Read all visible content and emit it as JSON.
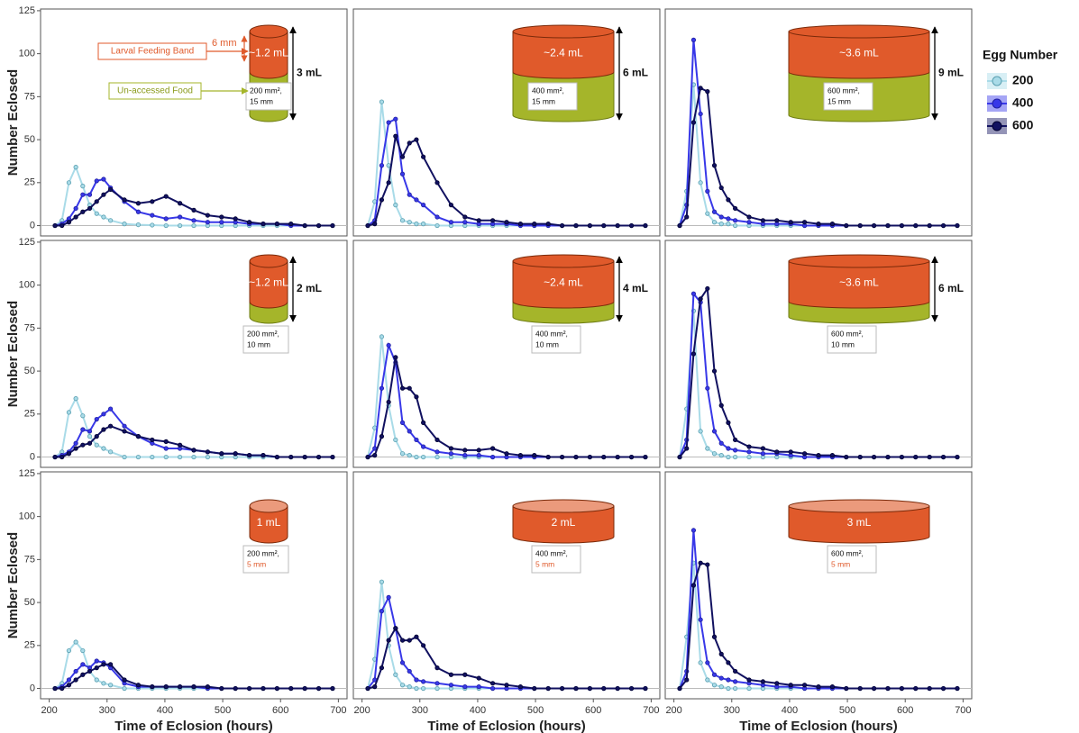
{
  "legend": {
    "title": "Egg Number",
    "entries": [
      {
        "name": "200",
        "color": "#a9dbe8",
        "edge": "#5a9fb0"
      },
      {
        "name": "400",
        "color": "#3838e8",
        "edge": "#2020a0"
      },
      {
        "name": "600",
        "color": "#111160",
        "edge": "#000030"
      }
    ]
  },
  "chart_data": [
    {
      "type": "line",
      "y_label": "Number Eclosed",
      "xlim": [
        185,
        715
      ],
      "ylim": [
        -6,
        126
      ],
      "yticks": [
        0,
        25,
        50,
        75,
        100,
        125
      ],
      "x": [
        210,
        222,
        234,
        246,
        258,
        270,
        282,
        294,
        306,
        330,
        354,
        378,
        402,
        426,
        450,
        474,
        498,
        522,
        546,
        570,
        594,
        618,
        642,
        666,
        690
      ],
      "series": [
        {
          "values": [
            0,
            3,
            25,
            34,
            23,
            12,
            7,
            5,
            3,
            1,
            0.5,
            0.3,
            0,
            0,
            0,
            0,
            0,
            0,
            0,
            0,
            0,
            0,
            0,
            0,
            0
          ]
        },
        {
          "values": [
            0,
            1,
            4,
            10,
            18,
            18,
            26,
            27,
            22,
            14,
            8,
            6,
            4,
            5,
            3,
            2,
            2,
            2,
            1,
            1,
            1,
            0,
            0,
            0,
            0
          ]
        },
        {
          "values": [
            0,
            0,
            2,
            5,
            8,
            10,
            14,
            18,
            21,
            15,
            13,
            14,
            17,
            13,
            9,
            6,
            5,
            4,
            2,
            1,
            1,
            1,
            0,
            0,
            0
          ]
        }
      ],
      "inset": {
        "band_label": "~1.2 mL",
        "total_label": "3 mL",
        "area_label": "200 mm²,",
        "depth_label": "15 mm",
        "band_color": "#e05a2b",
        "food_color": "#a5b52a"
      },
      "annotations": {
        "feeding_band": "Larval Feeding Band",
        "band_depth": "6 mm",
        "food": "Un-accessed Food"
      }
    },
    {
      "type": "line",
      "xlim": [
        185,
        715
      ],
      "ylim": [
        -6,
        126
      ],
      "x": [
        210,
        222,
        234,
        246,
        258,
        270,
        282,
        294,
        306,
        330,
        354,
        378,
        402,
        426,
        450,
        474,
        498,
        522,
        546,
        570,
        594,
        618,
        642,
        666,
        690
      ],
      "series": [
        {
          "values": [
            0,
            14,
            72,
            35,
            12,
            3,
            2,
            1,
            1,
            0,
            0,
            0,
            0,
            0,
            0,
            0,
            0,
            0,
            0,
            0,
            0,
            0,
            0,
            0,
            0
          ]
        },
        {
          "values": [
            0,
            3,
            35,
            60,
            62,
            30,
            18,
            15,
            12,
            5,
            2,
            2,
            1,
            1,
            1,
            0,
            0,
            0,
            0,
            0,
            0,
            0,
            0,
            0,
            0
          ]
        },
        {
          "values": [
            0,
            1,
            15,
            25,
            52,
            40,
            48,
            50,
            40,
            25,
            12,
            5,
            3,
            3,
            2,
            1,
            1,
            1,
            0,
            0,
            0,
            0,
            0,
            0,
            0
          ]
        }
      ],
      "inset": {
        "band_label": "~2.4 mL",
        "total_label": "6 mL",
        "area_label": "400 mm²,",
        "depth_label": "15 mm",
        "band_color": "#e05a2b",
        "food_color": "#a5b52a"
      }
    },
    {
      "type": "line",
      "xlim": [
        185,
        715
      ],
      "ylim": [
        -6,
        126
      ],
      "x": [
        210,
        222,
        234,
        246,
        258,
        270,
        282,
        294,
        306,
        330,
        354,
        378,
        402,
        426,
        450,
        474,
        498,
        522,
        546,
        570,
        594,
        618,
        642,
        666,
        690
      ],
      "series": [
        {
          "values": [
            0,
            20,
            82,
            25,
            7,
            2,
            1,
            1,
            0,
            0,
            0,
            0,
            0,
            0,
            0,
            0,
            0,
            0,
            0,
            0,
            0,
            0,
            0,
            0,
            0
          ]
        },
        {
          "values": [
            0,
            12,
            108,
            65,
            20,
            8,
            5,
            4,
            3,
            2,
            1,
            1,
            1,
            0,
            0,
            0,
            0,
            0,
            0,
            0,
            0,
            0,
            0,
            0,
            0
          ]
        },
        {
          "values": [
            0,
            5,
            60,
            80,
            78,
            35,
            22,
            15,
            10,
            5,
            3,
            3,
            2,
            2,
            1,
            1,
            0,
            0,
            0,
            0,
            0,
            0,
            0,
            0,
            0
          ]
        }
      ],
      "inset": {
        "band_label": "~3.6 mL",
        "total_label": "9 mL",
        "area_label": "600 mm²,",
        "depth_label": "15 mm",
        "band_color": "#e05a2b",
        "food_color": "#a5b52a"
      }
    },
    {
      "type": "line",
      "y_label": "Number Eclosed",
      "xlim": [
        185,
        715
      ],
      "ylim": [
        -6,
        126
      ],
      "yticks": [
        0,
        25,
        50,
        75,
        100,
        125
      ],
      "x": [
        210,
        222,
        234,
        246,
        258,
        270,
        282,
        294,
        306,
        330,
        354,
        378,
        402,
        426,
        450,
        474,
        498,
        522,
        546,
        570,
        594,
        618,
        642,
        666,
        690
      ],
      "series": [
        {
          "values": [
            0,
            3,
            26,
            34,
            24,
            12,
            7,
            5,
            3,
            0,
            0,
            0,
            0,
            0,
            0,
            0,
            0,
            0,
            0,
            0,
            0,
            0,
            0,
            0,
            0
          ]
        },
        {
          "values": [
            0,
            1,
            3,
            8,
            16,
            15,
            22,
            25,
            28,
            18,
            12,
            8,
            5,
            5,
            4,
            3,
            2,
            2,
            1,
            1,
            0,
            0,
            0,
            0,
            0
          ]
        },
        {
          "values": [
            0,
            0,
            2,
            5,
            7,
            8,
            12,
            16,
            18,
            15,
            12,
            10,
            9,
            7,
            4,
            3,
            2,
            2,
            1,
            1,
            0,
            0,
            0,
            0,
            0
          ]
        }
      ],
      "inset": {
        "band_label": "~1.2 mL",
        "total_label": "2 mL",
        "area_label": "200 mm²,",
        "depth_label": "10 mm",
        "band_color": "#e05a2b",
        "food_color": "#a5b52a"
      }
    },
    {
      "type": "line",
      "xlim": [
        185,
        715
      ],
      "ylim": [
        -6,
        126
      ],
      "x": [
        210,
        222,
        234,
        246,
        258,
        270,
        282,
        294,
        306,
        330,
        354,
        378,
        402,
        426,
        450,
        474,
        498,
        522,
        546,
        570,
        594,
        618,
        642,
        666,
        690
      ],
      "series": [
        {
          "values": [
            0,
            17,
            70,
            30,
            10,
            2,
            1,
            0,
            0,
            0,
            0,
            0,
            0,
            0,
            0,
            0,
            0,
            0,
            0,
            0,
            0,
            0,
            0,
            0,
            0
          ]
        },
        {
          "values": [
            0,
            5,
            40,
            65,
            55,
            20,
            15,
            10,
            6,
            3,
            2,
            1,
            1,
            0,
            0,
            0,
            0,
            0,
            0,
            0,
            0,
            0,
            0,
            0,
            0
          ]
        },
        {
          "values": [
            0,
            1,
            12,
            32,
            58,
            40,
            40,
            35,
            20,
            10,
            5,
            4,
            4,
            5,
            2,
            1,
            1,
            0,
            0,
            0,
            0,
            0,
            0,
            0,
            0
          ]
        }
      ],
      "inset": {
        "band_label": "~2.4 mL",
        "total_label": "4 mL",
        "area_label": "400 mm²,",
        "depth_label": "10 mm",
        "band_color": "#e05a2b",
        "food_color": "#a5b52a"
      }
    },
    {
      "type": "line",
      "xlim": [
        185,
        715
      ],
      "ylim": [
        -6,
        126
      ],
      "x": [
        210,
        222,
        234,
        246,
        258,
        270,
        282,
        294,
        306,
        330,
        354,
        378,
        402,
        426,
        450,
        474,
        498,
        522,
        546,
        570,
        594,
        618,
        642,
        666,
        690
      ],
      "series": [
        {
          "values": [
            0,
            28,
            85,
            15,
            5,
            2,
            1,
            0,
            0,
            0,
            0,
            0,
            0,
            0,
            0,
            0,
            0,
            0,
            0,
            0,
            0,
            0,
            0,
            0,
            0
          ]
        },
        {
          "values": [
            0,
            10,
            95,
            90,
            40,
            15,
            8,
            5,
            4,
            3,
            2,
            2,
            1,
            0,
            0,
            0,
            0,
            0,
            0,
            0,
            0,
            0,
            0,
            0,
            0
          ]
        },
        {
          "values": [
            0,
            5,
            60,
            92,
            98,
            50,
            30,
            20,
            10,
            6,
            5,
            3,
            3,
            2,
            1,
            1,
            0,
            0,
            0,
            0,
            0,
            0,
            0,
            0,
            0
          ]
        }
      ],
      "inset": {
        "band_label": "~3.6 mL",
        "total_label": "6 mL",
        "area_label": "600 mm²,",
        "depth_label": "10 mm",
        "band_color": "#e05a2b",
        "food_color": "#a5b52a"
      }
    },
    {
      "type": "line",
      "y_label": "Number Eclosed",
      "x_label": "Time of Eclosion (hours)",
      "xlim": [
        185,
        715
      ],
      "ylim": [
        -6,
        126
      ],
      "yticks": [
        0,
        25,
        50,
        75,
        100,
        125
      ],
      "xticks": [
        200,
        300,
        400,
        500,
        600,
        700
      ],
      "x": [
        210,
        222,
        234,
        246,
        258,
        270,
        282,
        294,
        306,
        330,
        354,
        378,
        402,
        426,
        450,
        474,
        498,
        522,
        546,
        570,
        594,
        618,
        642,
        666,
        690
      ],
      "series": [
        {
          "values": [
            0,
            3,
            22,
            27,
            22,
            10,
            5,
            3,
            2,
            0,
            0,
            0,
            0,
            0,
            0,
            0,
            0,
            0,
            0,
            0,
            0,
            0,
            0,
            0,
            0
          ]
        },
        {
          "values": [
            0,
            1,
            5,
            10,
            14,
            12,
            16,
            15,
            12,
            3,
            1,
            1,
            1,
            1,
            1,
            0,
            0,
            0,
            0,
            0,
            0,
            0,
            0,
            0,
            0
          ]
        },
        {
          "values": [
            0,
            0,
            2,
            5,
            8,
            10,
            12,
            14,
            14,
            5,
            2,
            1,
            1,
            1,
            1,
            1,
            0,
            0,
            0,
            0,
            0,
            0,
            0,
            0,
            0
          ]
        }
      ],
      "inset": {
        "band_label": "1 mL",
        "area_label": "200 mm²,",
        "depth_label": "5 mm",
        "band_color": "#e05a2b",
        "depth_color": "#e05a2b"
      }
    },
    {
      "type": "line",
      "x_label": "Time of Eclosion (hours)",
      "xlim": [
        185,
        715
      ],
      "ylim": [
        -6,
        126
      ],
      "xticks": [
        200,
        300,
        400,
        500,
        600,
        700
      ],
      "x": [
        210,
        222,
        234,
        246,
        258,
        270,
        282,
        294,
        306,
        330,
        354,
        378,
        402,
        426,
        450,
        474,
        498,
        522,
        546,
        570,
        594,
        618,
        642,
        666,
        690
      ],
      "series": [
        {
          "values": [
            0,
            17,
            62,
            25,
            8,
            2,
            1,
            0,
            0,
            0,
            0,
            0,
            0,
            0,
            0,
            0,
            0,
            0,
            0,
            0,
            0,
            0,
            0,
            0,
            0
          ]
        },
        {
          "values": [
            0,
            5,
            45,
            53,
            35,
            15,
            10,
            5,
            4,
            3,
            2,
            1,
            1,
            0,
            0,
            0,
            0,
            0,
            0,
            0,
            0,
            0,
            0,
            0,
            0
          ]
        },
        {
          "values": [
            0,
            1,
            12,
            28,
            35,
            28,
            28,
            30,
            25,
            12,
            8,
            8,
            6,
            3,
            2,
            1,
            0,
            0,
            0,
            0,
            0,
            0,
            0,
            0,
            0
          ]
        }
      ],
      "inset": {
        "band_label": "2 mL",
        "area_label": "400 mm²,",
        "depth_label": "5 mm",
        "band_color": "#e05a2b",
        "depth_color": "#e05a2b"
      }
    },
    {
      "type": "line",
      "x_label": "Time of Eclosion (hours)",
      "xlim": [
        185,
        715
      ],
      "ylim": [
        -6,
        126
      ],
      "xticks": [
        200,
        300,
        400,
        500,
        600,
        700
      ],
      "x": [
        210,
        222,
        234,
        246,
        258,
        270,
        282,
        294,
        306,
        330,
        354,
        378,
        402,
        426,
        450,
        474,
        498,
        522,
        546,
        570,
        594,
        618,
        642,
        666,
        690
      ],
      "series": [
        {
          "values": [
            0,
            30,
            73,
            15,
            5,
            2,
            1,
            0,
            0,
            0,
            0,
            0,
            0,
            0,
            0,
            0,
            0,
            0,
            0,
            0,
            0,
            0,
            0,
            0,
            0
          ]
        },
        {
          "values": [
            0,
            10,
            92,
            40,
            15,
            8,
            6,
            5,
            4,
            3,
            2,
            1,
            1,
            0,
            0,
            0,
            0,
            0,
            0,
            0,
            0,
            0,
            0,
            0,
            0
          ]
        },
        {
          "values": [
            0,
            5,
            60,
            73,
            72,
            30,
            20,
            15,
            10,
            5,
            4,
            3,
            2,
            2,
            1,
            1,
            0,
            0,
            0,
            0,
            0,
            0,
            0,
            0,
            0
          ]
        }
      ],
      "inset": {
        "band_label": "3 mL",
        "area_label": "600 mm²,",
        "depth_label": "5 mm",
        "band_color": "#e05a2b",
        "depth_color": "#e05a2b"
      }
    }
  ]
}
